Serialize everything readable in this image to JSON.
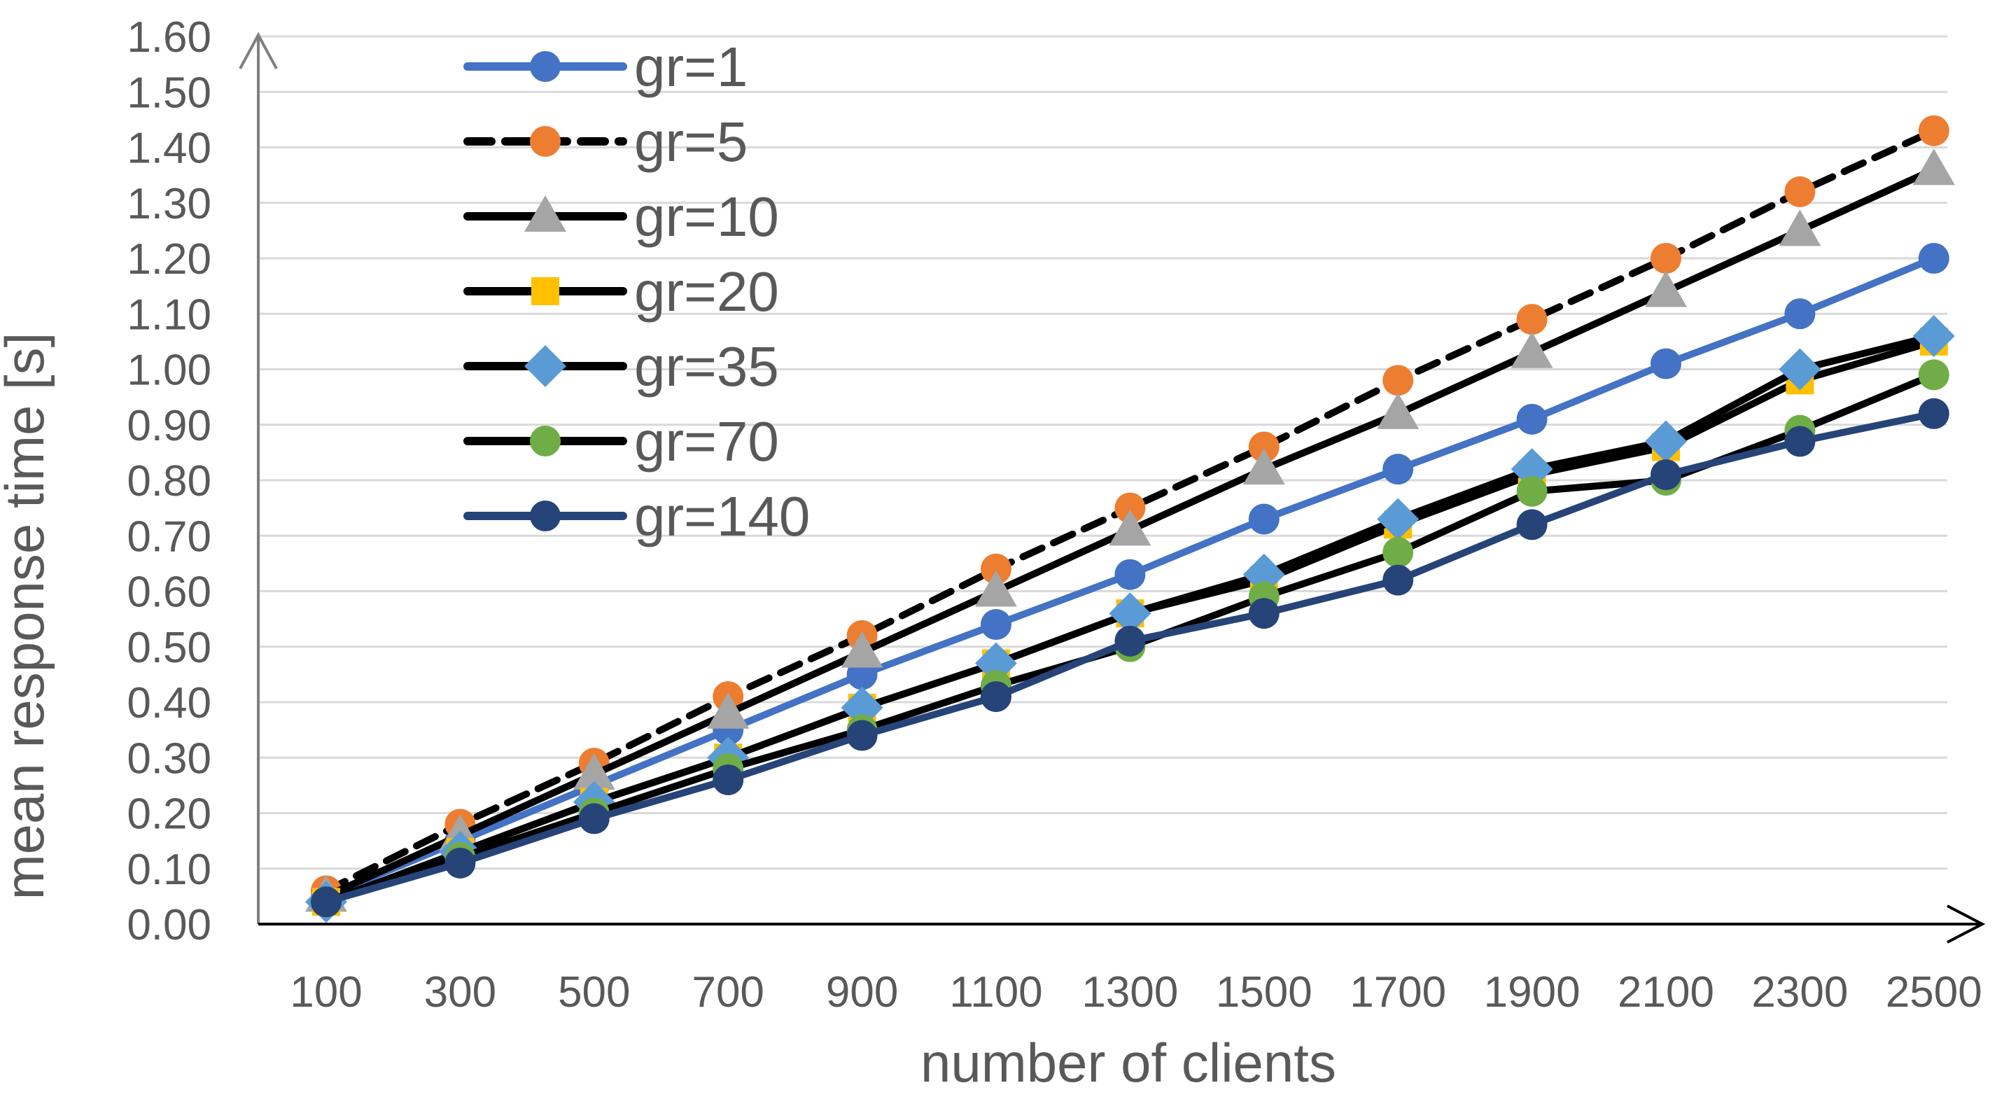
{
  "chart_data": {
    "type": "line",
    "title": "",
    "xlabel": "number of clients",
    "ylabel": "mean response time [s]",
    "categories": [
      "100",
      "300",
      "500",
      "700",
      "900",
      "1100",
      "1300",
      "1500",
      "1700",
      "1900",
      "2100",
      "2300",
      "2500"
    ],
    "ylim": [
      0,
      1.6
    ],
    "ytick_step": 0.1,
    "ytick_labels": [
      "0.00",
      "0.10",
      "0.20",
      "0.30",
      "0.40",
      "0.50",
      "0.60",
      "0.70",
      "0.80",
      "0.90",
      "1.00",
      "1.10",
      "1.20",
      "1.30",
      "1.40",
      "1.50",
      "1.60"
    ],
    "grid": true,
    "legend_position": "top-left",
    "series": [
      {
        "name": "gr=1",
        "line_color": "#4472C4",
        "line_style": "solid",
        "marker": "circle",
        "marker_color": "#4472C4",
        "values": [
          0.05,
          0.15,
          0.25,
          0.35,
          0.45,
          0.54,
          0.63,
          0.73,
          0.82,
          0.91,
          1.01,
          1.1,
          1.2
        ]
      },
      {
        "name": "gr=5",
        "line_color": "#000000",
        "line_style": "dashed",
        "marker": "circle",
        "marker_color": "#ED7D31",
        "values": [
          0.06,
          0.18,
          0.29,
          0.41,
          0.52,
          0.64,
          0.75,
          0.86,
          0.98,
          1.09,
          1.2,
          1.32,
          1.43
        ]
      },
      {
        "name": "gr=10",
        "line_color": "#000000",
        "line_style": "solid",
        "marker": "triangle",
        "marker_color": "#A5A5A5",
        "values": [
          0.05,
          0.16,
          0.27,
          0.38,
          0.49,
          0.6,
          0.71,
          0.82,
          0.92,
          1.03,
          1.14,
          1.25,
          1.36
        ]
      },
      {
        "name": "gr=20",
        "line_color": "#000000",
        "line_style": "solid",
        "marker": "square",
        "marker_color": "#FFC000",
        "values": [
          0.04,
          0.13,
          0.22,
          0.3,
          0.39,
          0.47,
          0.56,
          0.62,
          0.72,
          0.81,
          0.86,
          0.98,
          1.05
        ]
      },
      {
        "name": "gr=35",
        "line_color": "#000000",
        "line_style": "solid",
        "marker": "diamond",
        "marker_color": "#5B9BD5",
        "values": [
          0.04,
          0.13,
          0.22,
          0.3,
          0.39,
          0.47,
          0.56,
          0.63,
          0.73,
          0.82,
          0.87,
          1.0,
          1.06
        ]
      },
      {
        "name": "gr=70",
        "line_color": "#000000",
        "line_style": "solid",
        "marker": "circle",
        "marker_color": "#70AD47",
        "values": [
          0.04,
          0.12,
          0.2,
          0.28,
          0.35,
          0.43,
          0.5,
          0.59,
          0.67,
          0.78,
          0.8,
          0.89,
          0.99
        ]
      },
      {
        "name": "gr=140",
        "line_color": "#264478",
        "line_style": "solid",
        "marker": "circle",
        "marker_color": "#264478",
        "values": [
          0.04,
          0.11,
          0.19,
          0.26,
          0.34,
          0.41,
          0.51,
          0.56,
          0.62,
          0.72,
          0.81,
          0.87,
          0.92
        ]
      }
    ]
  }
}
